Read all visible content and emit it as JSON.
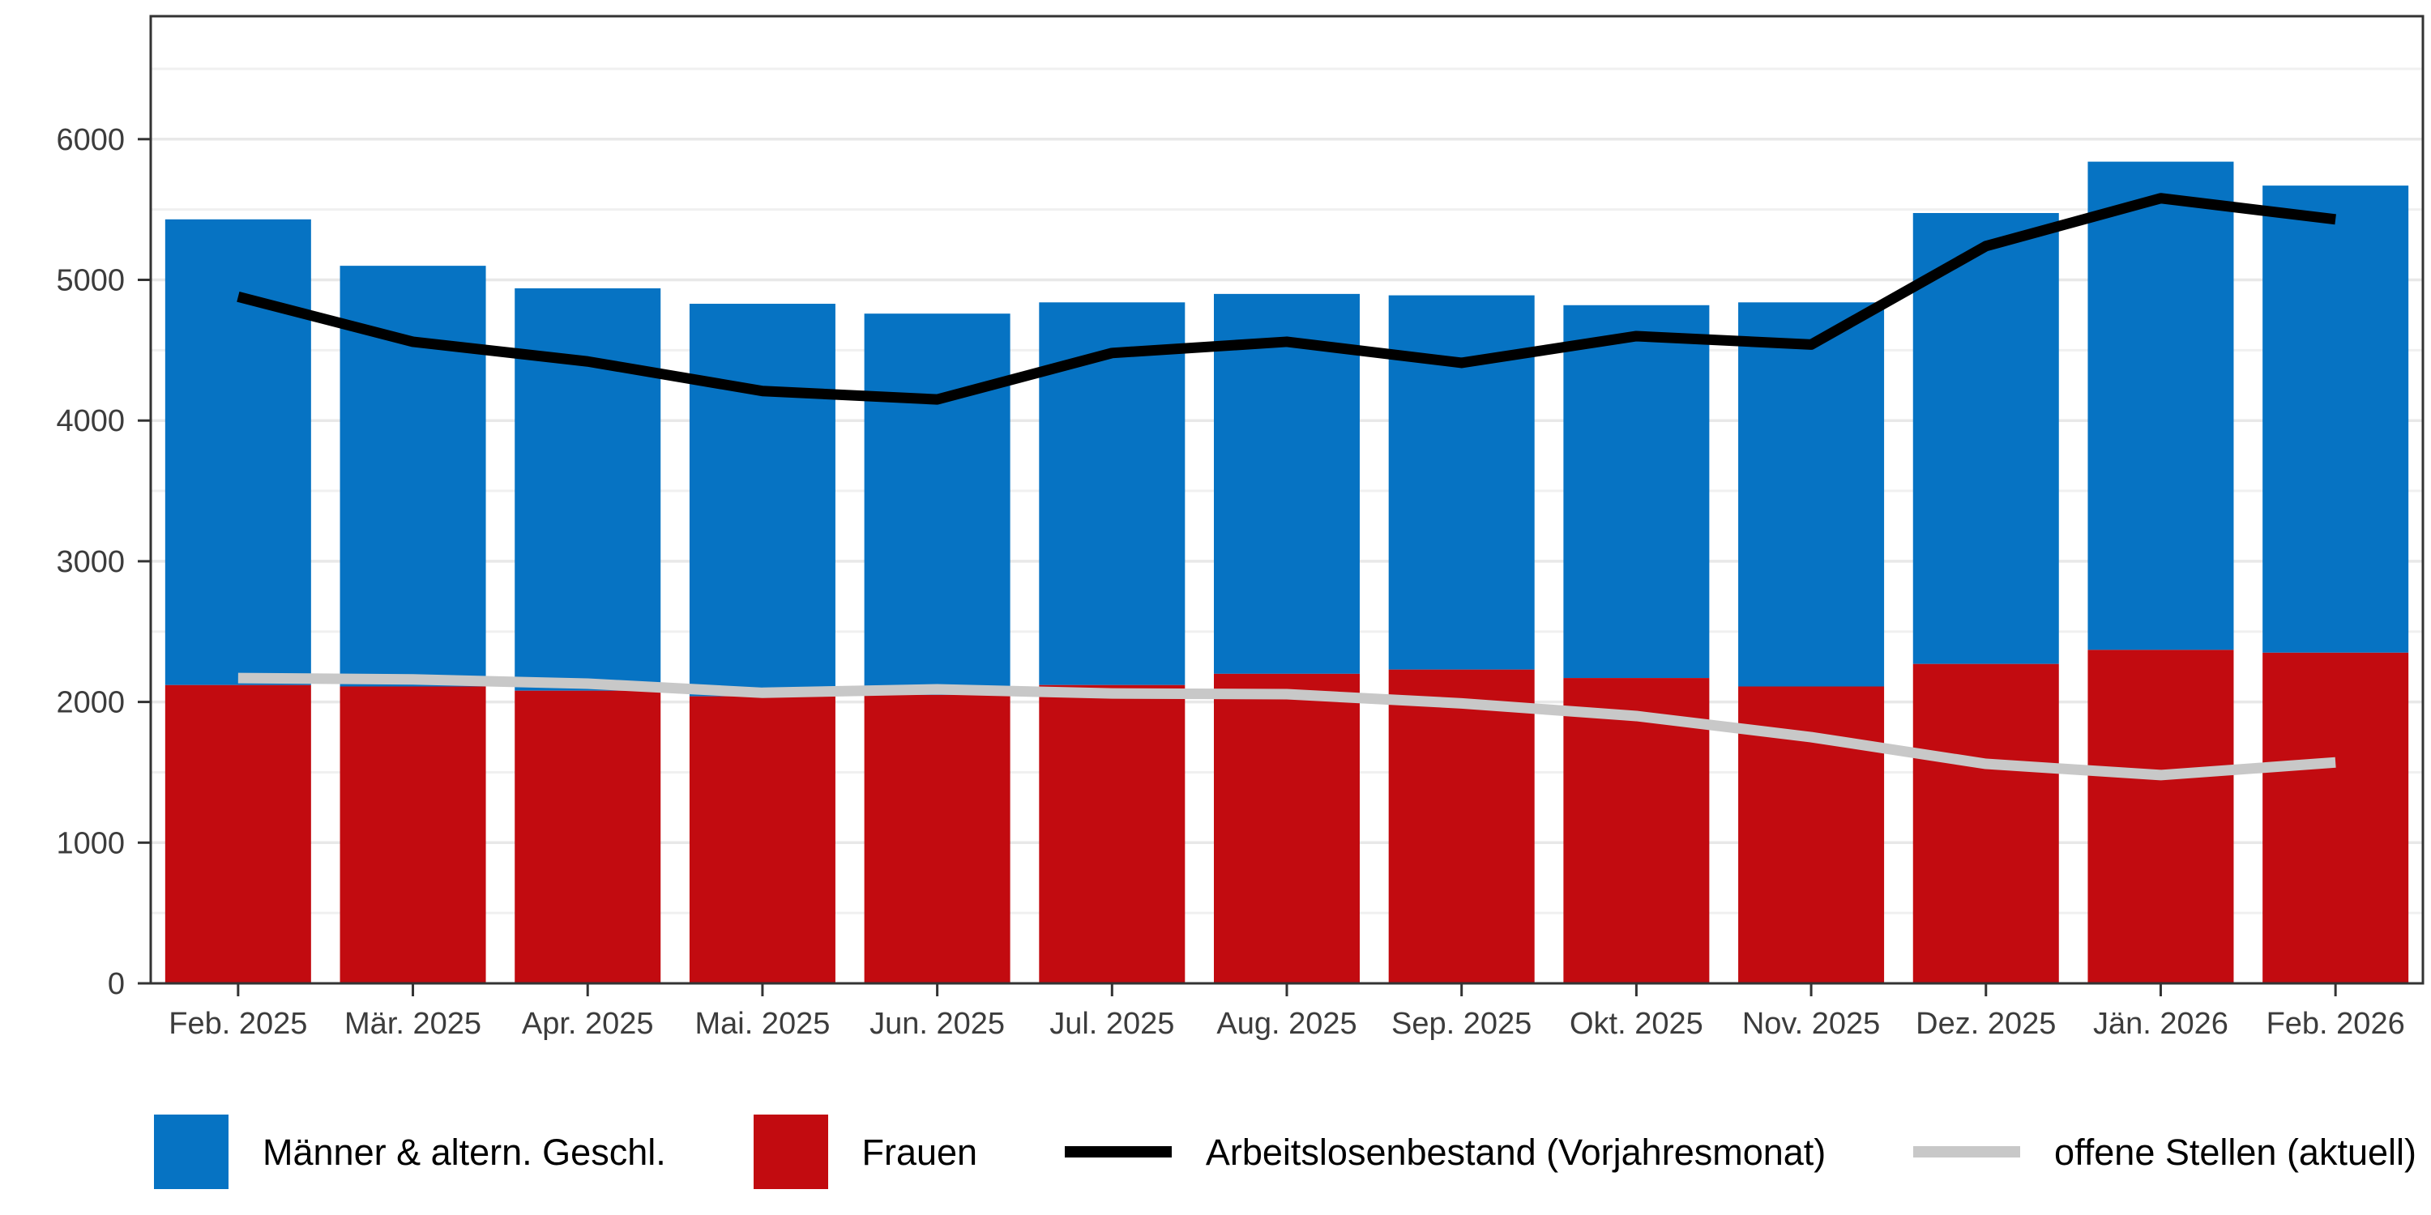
{
  "chart_data": {
    "type": "bar",
    "subtype": "stacked-bars-with-overlay-lines",
    "categories": [
      "Feb. 2025",
      "Mär. 2025",
      "Apr. 2025",
      "Mai. 2025",
      "Jun. 2025",
      "Jul. 2025",
      "Aug. 2025",
      "Sep. 2025",
      "Okt. 2025",
      "Nov. 2025",
      "Dez. 2025",
      "Jän. 2026",
      "Feb. 2026"
    ],
    "series": [
      {
        "name": "Männer & altern. Geschl.",
        "type": "bar",
        "stack_position": "top",
        "color": "#0673c3",
        "values": [
          3310,
          2990,
          2860,
          2790,
          2710,
          2720,
          2700,
          2660,
          2650,
          2730,
          3205,
          3470,
          3320
        ]
      },
      {
        "name": "Frauen",
        "type": "bar",
        "stack_position": "bottom",
        "color": "#c20b10",
        "values": [
          2120,
          2110,
          2080,
          2040,
          2050,
          2120,
          2200,
          2230,
          2170,
          2110,
          2270,
          2370,
          2350
        ]
      },
      {
        "name": "Arbeitslosenbestand (Vorjahresmonat)",
        "type": "line",
        "color": "#000000",
        "values": [
          4880,
          4560,
          4420,
          4210,
          4150,
          4480,
          4560,
          4410,
          4600,
          4540,
          5240,
          5580,
          5430
        ]
      },
      {
        "name": "offene Stellen (aktuell)",
        "type": "line",
        "color": "#c8c8c8",
        "values": [
          2170,
          2160,
          2130,
          2065,
          2090,
          2060,
          2055,
          1990,
          1900,
          1750,
          1560,
          1480,
          1570
        ]
      }
    ],
    "stacked_totals": [
      5430,
      5100,
      4940,
      4830,
      4760,
      4840,
      4900,
      4890,
      4820,
      4840,
      5475,
      5840,
      5670
    ],
    "y_ticks": [
      0,
      1000,
      2000,
      3000,
      4000,
      5000,
      6000
    ],
    "y_tick_labels": [
      "0",
      "1000",
      "2000",
      "3000",
      "4000",
      "5000",
      "6000"
    ],
    "ylim": [
      0,
      6880
    ],
    "grid": "on",
    "minor_grid_interval": 500,
    "legend_position": "bottom"
  },
  "legend": {
    "items": [
      {
        "label": "Männer & altern. Geschl.",
        "swatch": "blue-square"
      },
      {
        "label": "Frauen",
        "swatch": "red-square"
      },
      {
        "label": "Arbeitslosenbestand (Vorjahresmonat)",
        "swatch": "black-line"
      },
      {
        "label": "offene Stellen (aktuell)",
        "swatch": "gray-line"
      }
    ]
  },
  "colors": {
    "maenner_blue": "#0673c3",
    "frauen_red": "#c20b10",
    "line_black": "#000000",
    "line_gray": "#c8c8c8",
    "grid_major": "#e8e8e8",
    "grid_minor": "#f0f0f0",
    "panel_border": "#333333",
    "axis_text": "#3c3c3c",
    "background": "#ffffff"
  }
}
